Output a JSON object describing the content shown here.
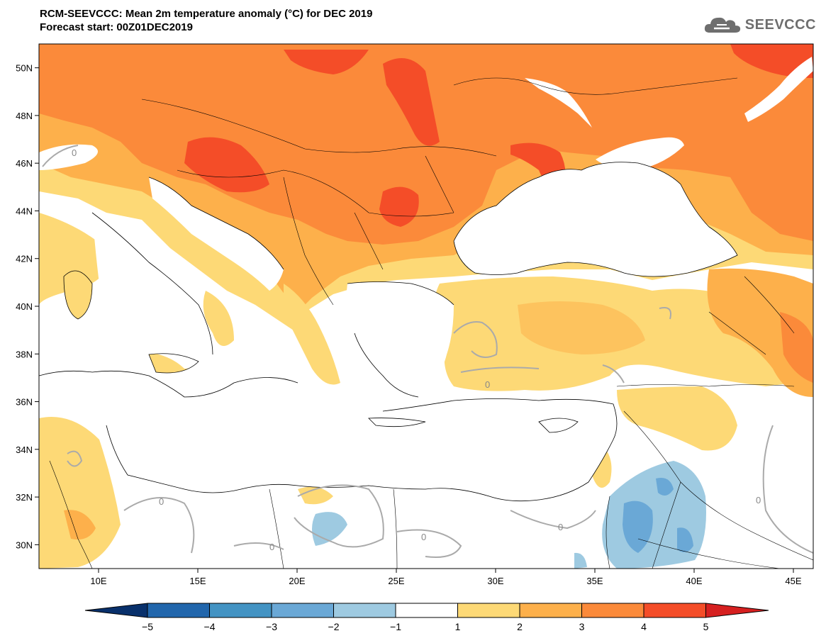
{
  "title": {
    "line1": "RCM-SEEVCCC: Mean 2m temperature anomaly (°C) for DEC 2019",
    "line2": "Forecast start: 00Z01DEC2019"
  },
  "logo": {
    "text": "SEEVCCC",
    "icon": "cloud-icon"
  },
  "map": {
    "lat_labels": [
      "50N",
      "48N",
      "46N",
      "44N",
      "42N",
      "40N",
      "38N",
      "36N",
      "34N",
      "32N",
      "30N"
    ],
    "lon_labels": [
      "10E",
      "15E",
      "20E",
      "25E",
      "30E",
      "35E",
      "40E",
      "45E"
    ],
    "contour_label": "0",
    "lat_range": [
      29,
      51
    ],
    "lon_range": [
      7,
      46
    ]
  },
  "colorbar": {
    "labels": [
      "−5",
      "−4",
      "−3",
      "−2",
      "−1",
      "1",
      "2",
      "3",
      "4",
      "5"
    ],
    "colors": [
      "#08306b",
      "#2166ac",
      "#4393c3",
      "#6aa8d6",
      "#9ecae1",
      "#ffffff",
      "#fdd976",
      "#fdb04b",
      "#fb8a3a",
      "#f44d28",
      "#d62020"
    ]
  }
}
